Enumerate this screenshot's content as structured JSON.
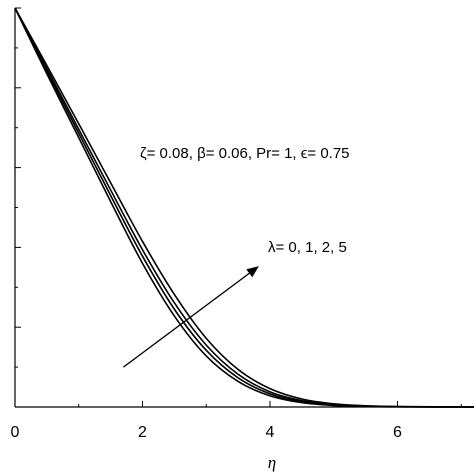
{
  "chart_data": {
    "type": "line",
    "title": "",
    "xlabel": "η",
    "ylabel": "",
    "xlim": [
      0,
      7.2
    ],
    "ylim": [
      0,
      1
    ],
    "xticks": [
      "0",
      "2",
      "4",
      "6"
    ],
    "grid": false,
    "legend": "none",
    "series": [
      {
        "values": [
          [
            0,
            1.0
          ],
          [
            0.5,
            0.835
          ],
          [
            1.0,
            0.675
          ],
          [
            1.5,
            0.515
          ],
          [
            2.0,
            0.36
          ],
          [
            2.5,
            0.228
          ],
          [
            3.0,
            0.128
          ],
          [
            3.5,
            0.064
          ],
          [
            4.0,
            0.028
          ],
          [
            4.5,
            0.011
          ],
          [
            5.0,
            0.004
          ],
          [
            5.5,
            0.0015
          ],
          [
            6.0,
            0.0005
          ],
          [
            7.2,
            0.0
          ]
        ]
      },
      {
        "values": [
          [
            0,
            1.0
          ],
          [
            0.5,
            0.842
          ],
          [
            1.0,
            0.686
          ],
          [
            1.5,
            0.53
          ],
          [
            2.0,
            0.378
          ],
          [
            2.5,
            0.245
          ],
          [
            3.0,
            0.142
          ],
          [
            3.5,
            0.073
          ],
          [
            4.0,
            0.033
          ],
          [
            4.5,
            0.013
          ],
          [
            5.0,
            0.005
          ],
          [
            5.5,
            0.0018
          ],
          [
            6.0,
            0.0006
          ],
          [
            7.2,
            0.0
          ]
        ]
      },
      {
        "values": [
          [
            0,
            1.0
          ],
          [
            0.5,
            0.848
          ],
          [
            1.0,
            0.696
          ],
          [
            1.5,
            0.544
          ],
          [
            2.0,
            0.394
          ],
          [
            2.5,
            0.261
          ],
          [
            3.0,
            0.155
          ],
          [
            3.5,
            0.082
          ],
          [
            4.0,
            0.038
          ],
          [
            4.5,
            0.016
          ],
          [
            5.0,
            0.006
          ],
          [
            5.5,
            0.0022
          ],
          [
            6.0,
            0.0007
          ],
          [
            7.2,
            0.0
          ]
        ]
      },
      {
        "values": [
          [
            0,
            1.0
          ],
          [
            0.5,
            0.856
          ],
          [
            1.0,
            0.71
          ],
          [
            1.5,
            0.562
          ],
          [
            2.0,
            0.415
          ],
          [
            2.5,
            0.282
          ],
          [
            3.0,
            0.172
          ],
          [
            3.5,
            0.094
          ],
          [
            4.0,
            0.046
          ],
          [
            4.5,
            0.02
          ],
          [
            5.0,
            0.008
          ],
          [
            5.5,
            0.003
          ],
          [
            6.0,
            0.001
          ],
          [
            7.2,
            0.0
          ]
        ]
      }
    ],
    "annotations": {
      "params": "ζ= 0.08, β= 0.06, Pr= 1, ϵ= 0.75",
      "lambda": "λ= 0, 1, 2, 5"
    },
    "arrow": {
      "from": [
        1.7,
        0.1
      ],
      "to": [
        3.8,
        0.35
      ]
    }
  }
}
